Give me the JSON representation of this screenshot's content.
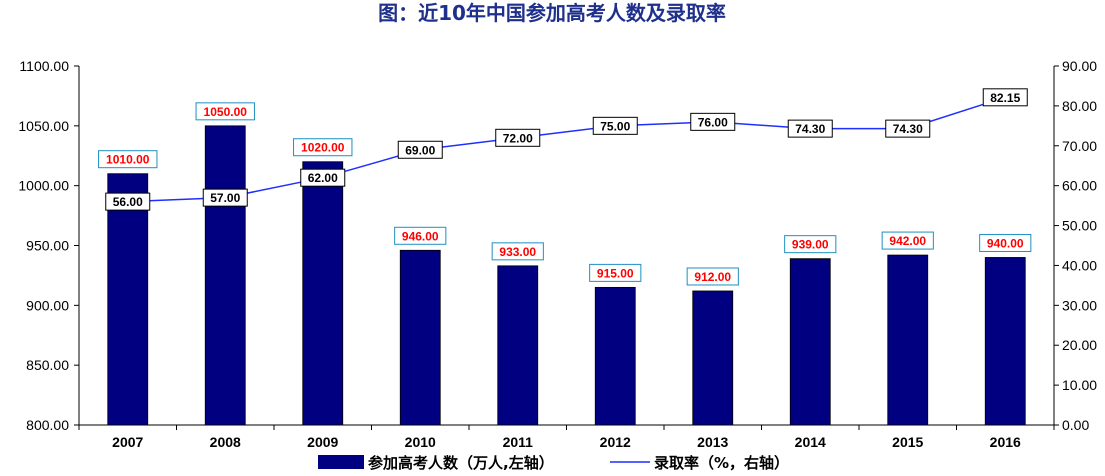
{
  "chart_data": {
    "type": "bar",
    "title": "图：近10年中国参加高考人数及录取率",
    "categories": [
      "2007",
      "2008",
      "2009",
      "2010",
      "2011",
      "2012",
      "2013",
      "2014",
      "2015",
      "2016"
    ],
    "series": [
      {
        "name": "参加高考人数（万人,左轴）",
        "type": "bar",
        "axis": "left",
        "values": [
          1010.0,
          1050.0,
          1020.0,
          946.0,
          933.0,
          915.0,
          912.0,
          939.0,
          942.0,
          940.0
        ],
        "labels": [
          "1010.00",
          "1050.00",
          "1020.00",
          "946.00",
          "933.00",
          "915.00",
          "912.00",
          "939.00",
          "942.00",
          "940.00"
        ],
        "color": "#000080"
      },
      {
        "name": "录取率（%，右轴）",
        "type": "line",
        "axis": "right",
        "values": [
          56.0,
          57.0,
          62.0,
          69.0,
          72.0,
          75.0,
          76.0,
          74.3,
          74.3,
          82.15
        ],
        "labels": [
          "56.00",
          "57.00",
          "62.00",
          "69.00",
          "72.00",
          "75.00",
          "76.00",
          "74.30",
          "74.30",
          "82.15"
        ],
        "color": "#1f2fff"
      }
    ],
    "y_left": {
      "ylim": [
        800,
        1100
      ],
      "ticks": [
        "800.00",
        "850.00",
        "900.00",
        "950.00",
        "1000.00",
        "1050.00",
        "1100.00"
      ]
    },
    "y_right": {
      "ylim": [
        0,
        90
      ],
      "ticks": [
        "0.00",
        "10.00",
        "20.00",
        "30.00",
        "40.00",
        "50.00",
        "60.00",
        "70.00",
        "80.00",
        "90.00"
      ]
    },
    "grid": false,
    "legend_position": "bottom",
    "bar_label_color": "#ff0000",
    "bar_label_border": "#1f8fc0"
  }
}
